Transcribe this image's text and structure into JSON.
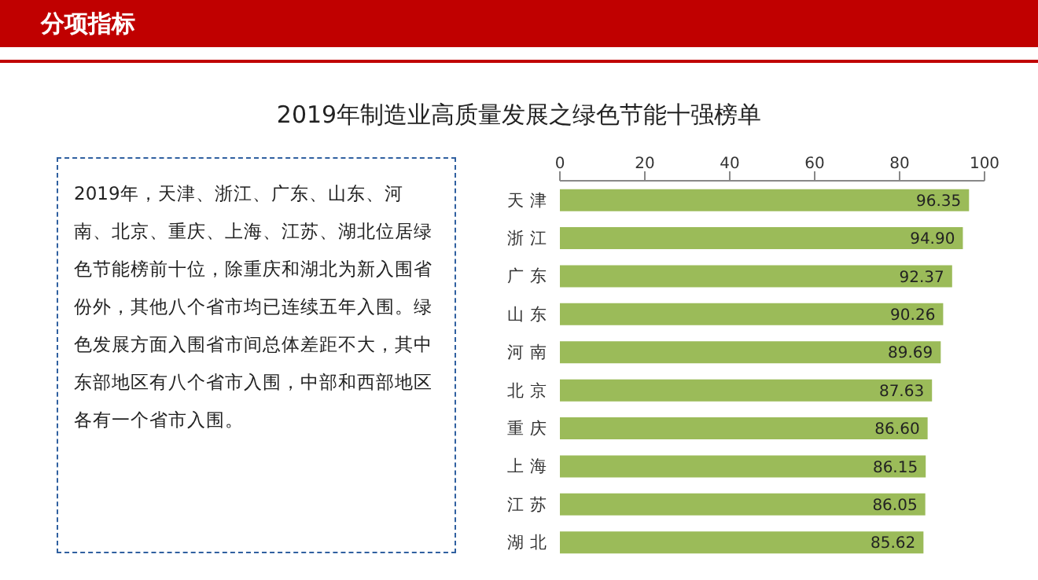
{
  "chart_data": {
    "type": "bar",
    "orientation": "horizontal",
    "title": "2019年制造业高质量发展之绿色节能十强榜单",
    "annotations": [
      "分项指标",
      "2019年，天津、浙江、广东、山东、河南、北京、重庆、上海、江苏、湖北位居绿色节能榜前十位，除重庆和湖北为新入围省份外，其他八个省市均已连续五年入围。绿色发展方面入围省市间总体差距不大，其中东部地区有八个省市入围，中部和西部地区各有一个省市入围。"
    ],
    "categories": [
      "天 津",
      "浙 江",
      "广 东",
      "山 东",
      "河 南",
      "北 京",
      "重 庆",
      "上 海",
      "江 苏",
      "湖 北"
    ],
    "values": [
      96.35,
      94.9,
      92.37,
      90.26,
      89.69,
      87.63,
      86.6,
      86.15,
      86.05,
      85.62
    ],
    "value_labels": [
      "96.35",
      "94.90",
      "92.37",
      "90.26",
      "89.69",
      "87.63",
      "86.60",
      "86.15",
      "86.05",
      "85.62"
    ],
    "color": "#9bbb59",
    "xlim": [
      0,
      100
    ],
    "xticks": [
      0,
      20,
      40,
      60,
      80,
      100
    ],
    "grid": false
  }
}
